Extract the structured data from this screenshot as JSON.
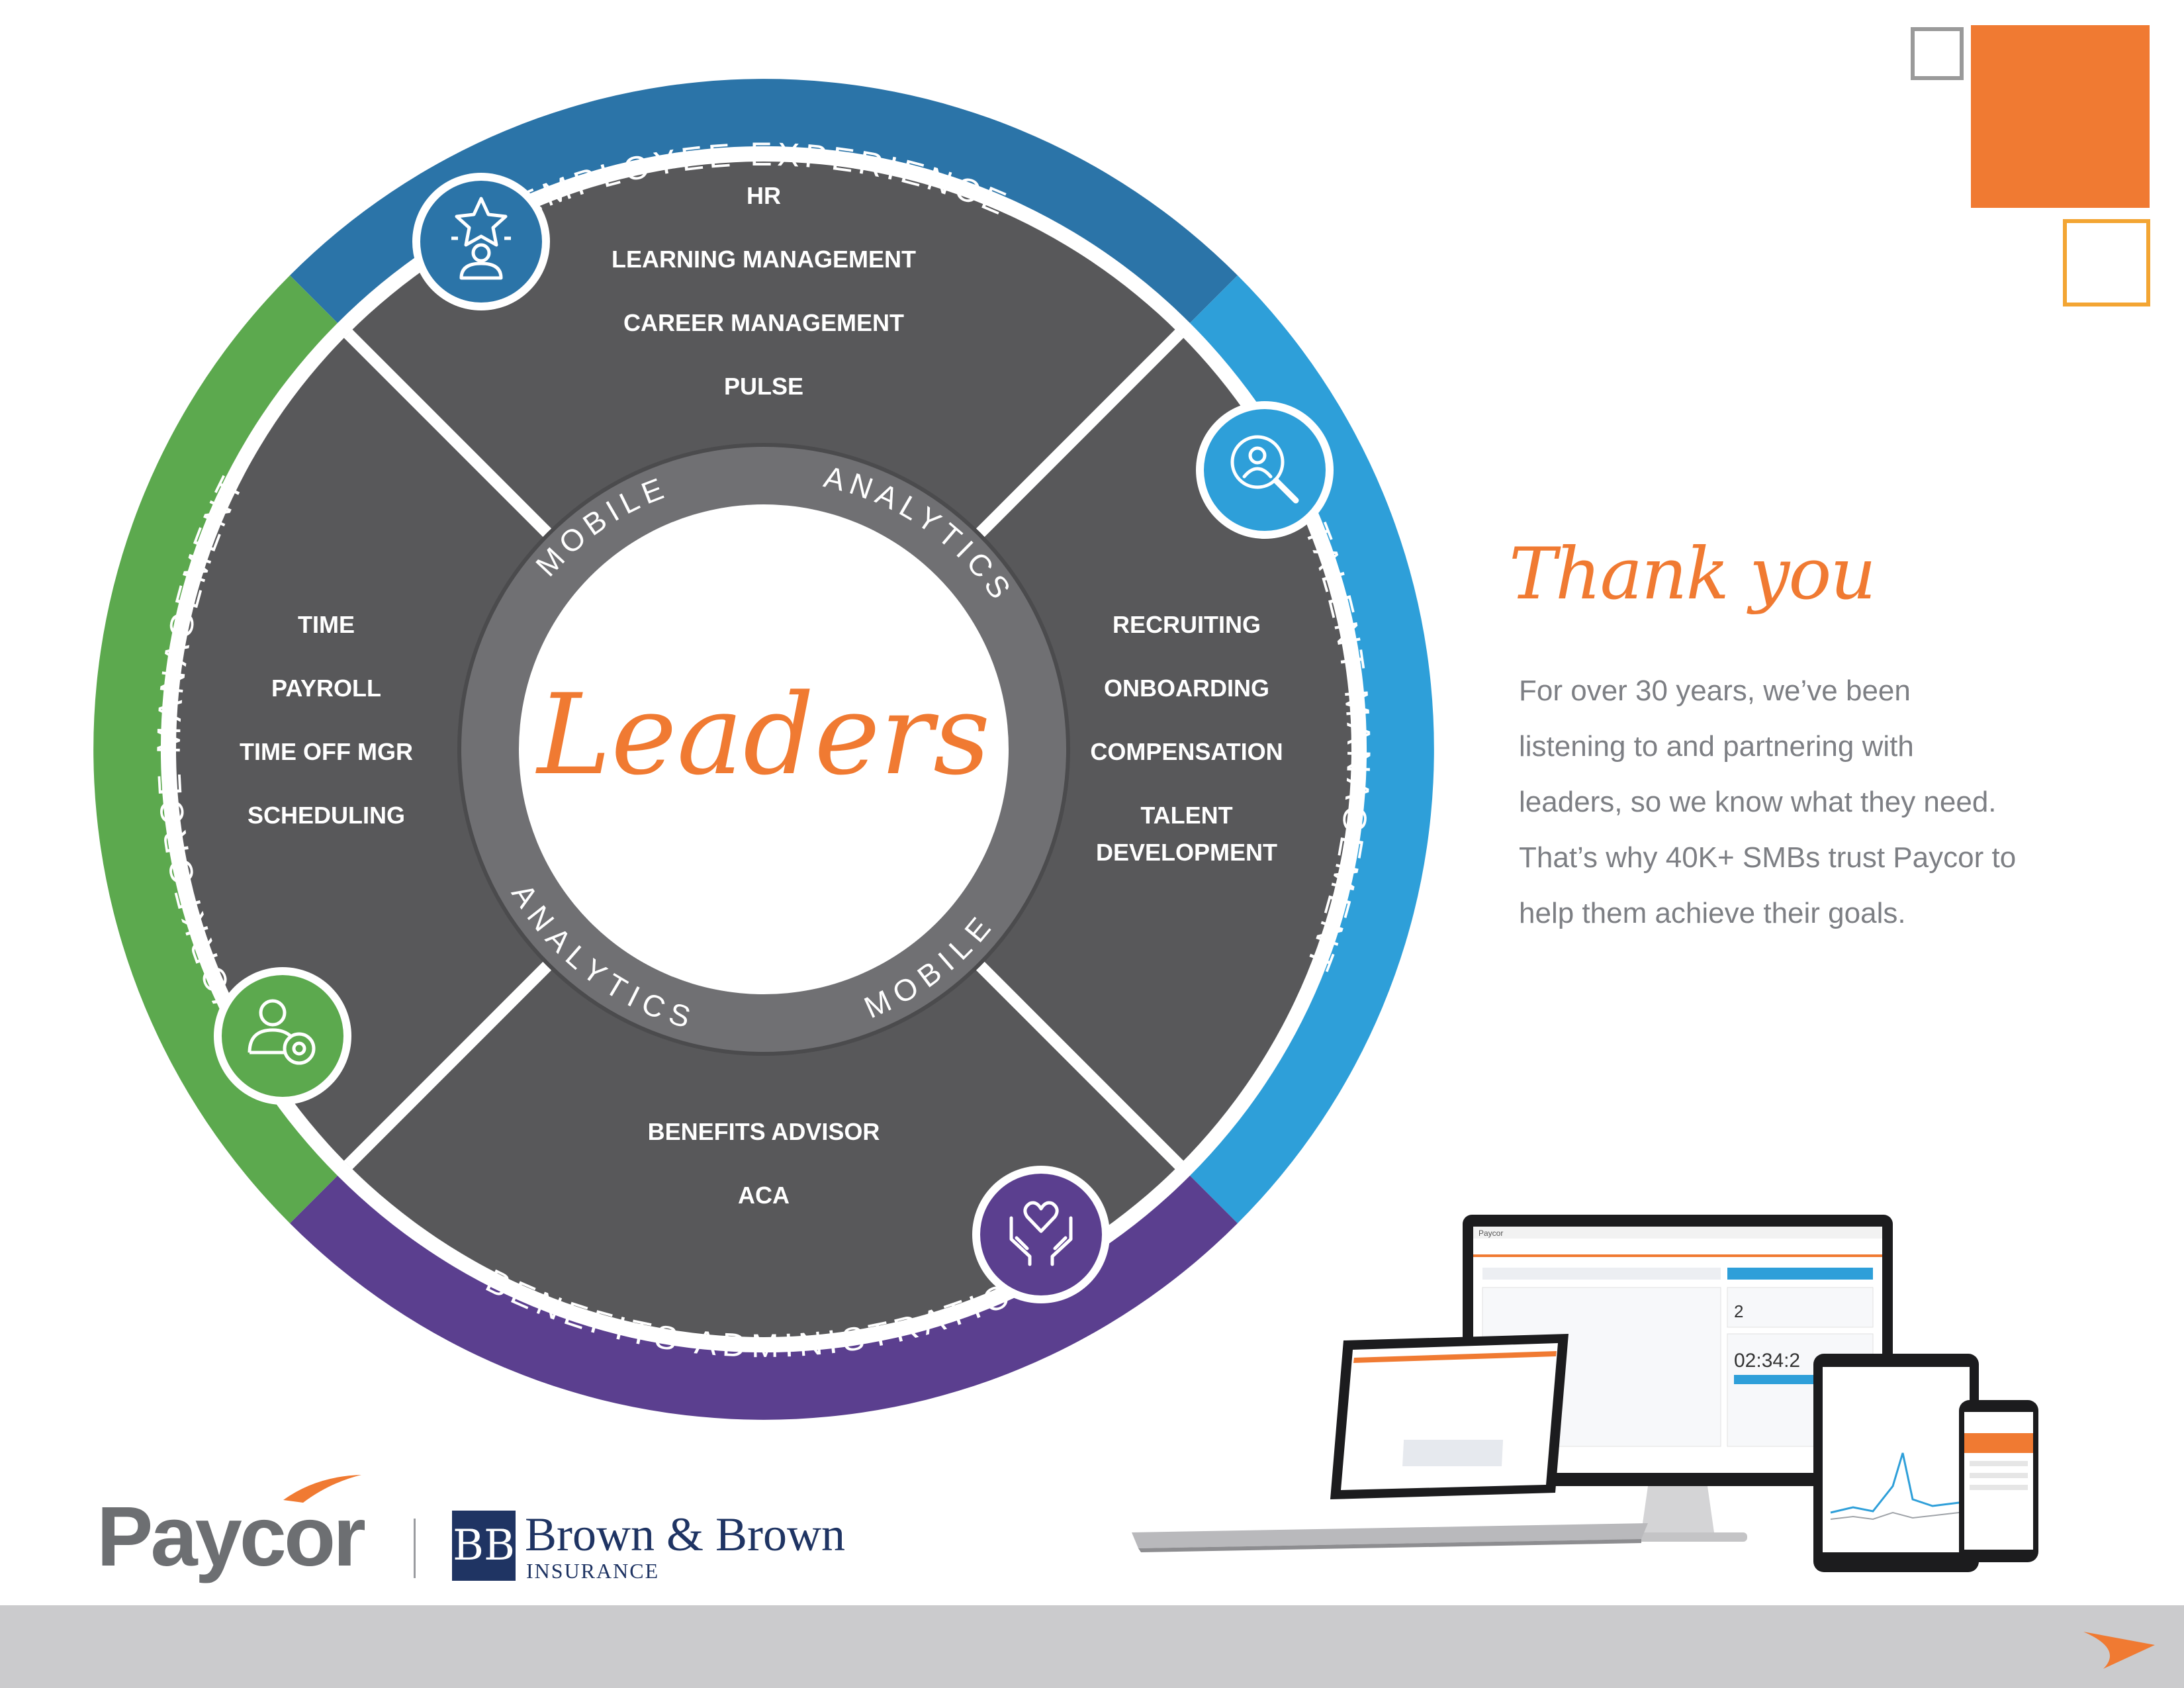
{
  "wheel": {
    "outer_ring": {
      "top": "EMPLOYEE EXPERIENCE",
      "right": "TALENT MANAGEMENT",
      "bottom": "BENEFITS ADMINISTRATION",
      "left": "WORKFORCE MANAGEMENT"
    },
    "quadrants": {
      "top": [
        "HR",
        "LEARNING MANAGEMENT",
        "CAREER MANAGEMENT",
        "PULSE"
      ],
      "right": [
        "RECRUITING",
        "ONBOARDING",
        "COMPENSATION",
        "TALENT",
        "DEVELOPMENT"
      ],
      "bottom": [
        "BENEFITS ADVISOR",
        "ACA"
      ],
      "left": [
        "TIME",
        "PAYROLL",
        "TIME OFF MGR",
        "SCHEDULING"
      ]
    },
    "inner_ring": {
      "top_left": "MOBILE",
      "top_right": "ANALYTICS",
      "bottom_left": "ANALYTICS",
      "bottom_right": "MOBILE"
    },
    "center_word": "Leaders",
    "icons": {
      "top": "employee-star-icon",
      "right": "person-search-icon",
      "bottom": "hands-heart-icon",
      "left": "person-gear-icon"
    },
    "colors": {
      "employee_experience": "#2b74a8",
      "talent_management": "#2e9fd9",
      "benefits_administration": "#5b3f8f",
      "workforce_management": "#5ca94e",
      "quadrant": "#58585a",
      "inner_ring": "#707073",
      "accent": "#f07a32"
    }
  },
  "side": {
    "title": "Thank you",
    "lines": [
      "For over 30 years, we’ve been",
      "listening to and partnering with",
      "leaders, so we know what they need.",
      "That’s why 40K+ SMBs trust Paycor to",
      "help them achieve their goals."
    ]
  },
  "logos": {
    "paycor": "Paycor",
    "bb_monogram": "BB",
    "bb_name": "Brown & Brown",
    "bb_sub": "INSURANCE"
  },
  "devices": {
    "brand": "Paycor",
    "clock": "02:34:2",
    "missing_count": "2"
  }
}
